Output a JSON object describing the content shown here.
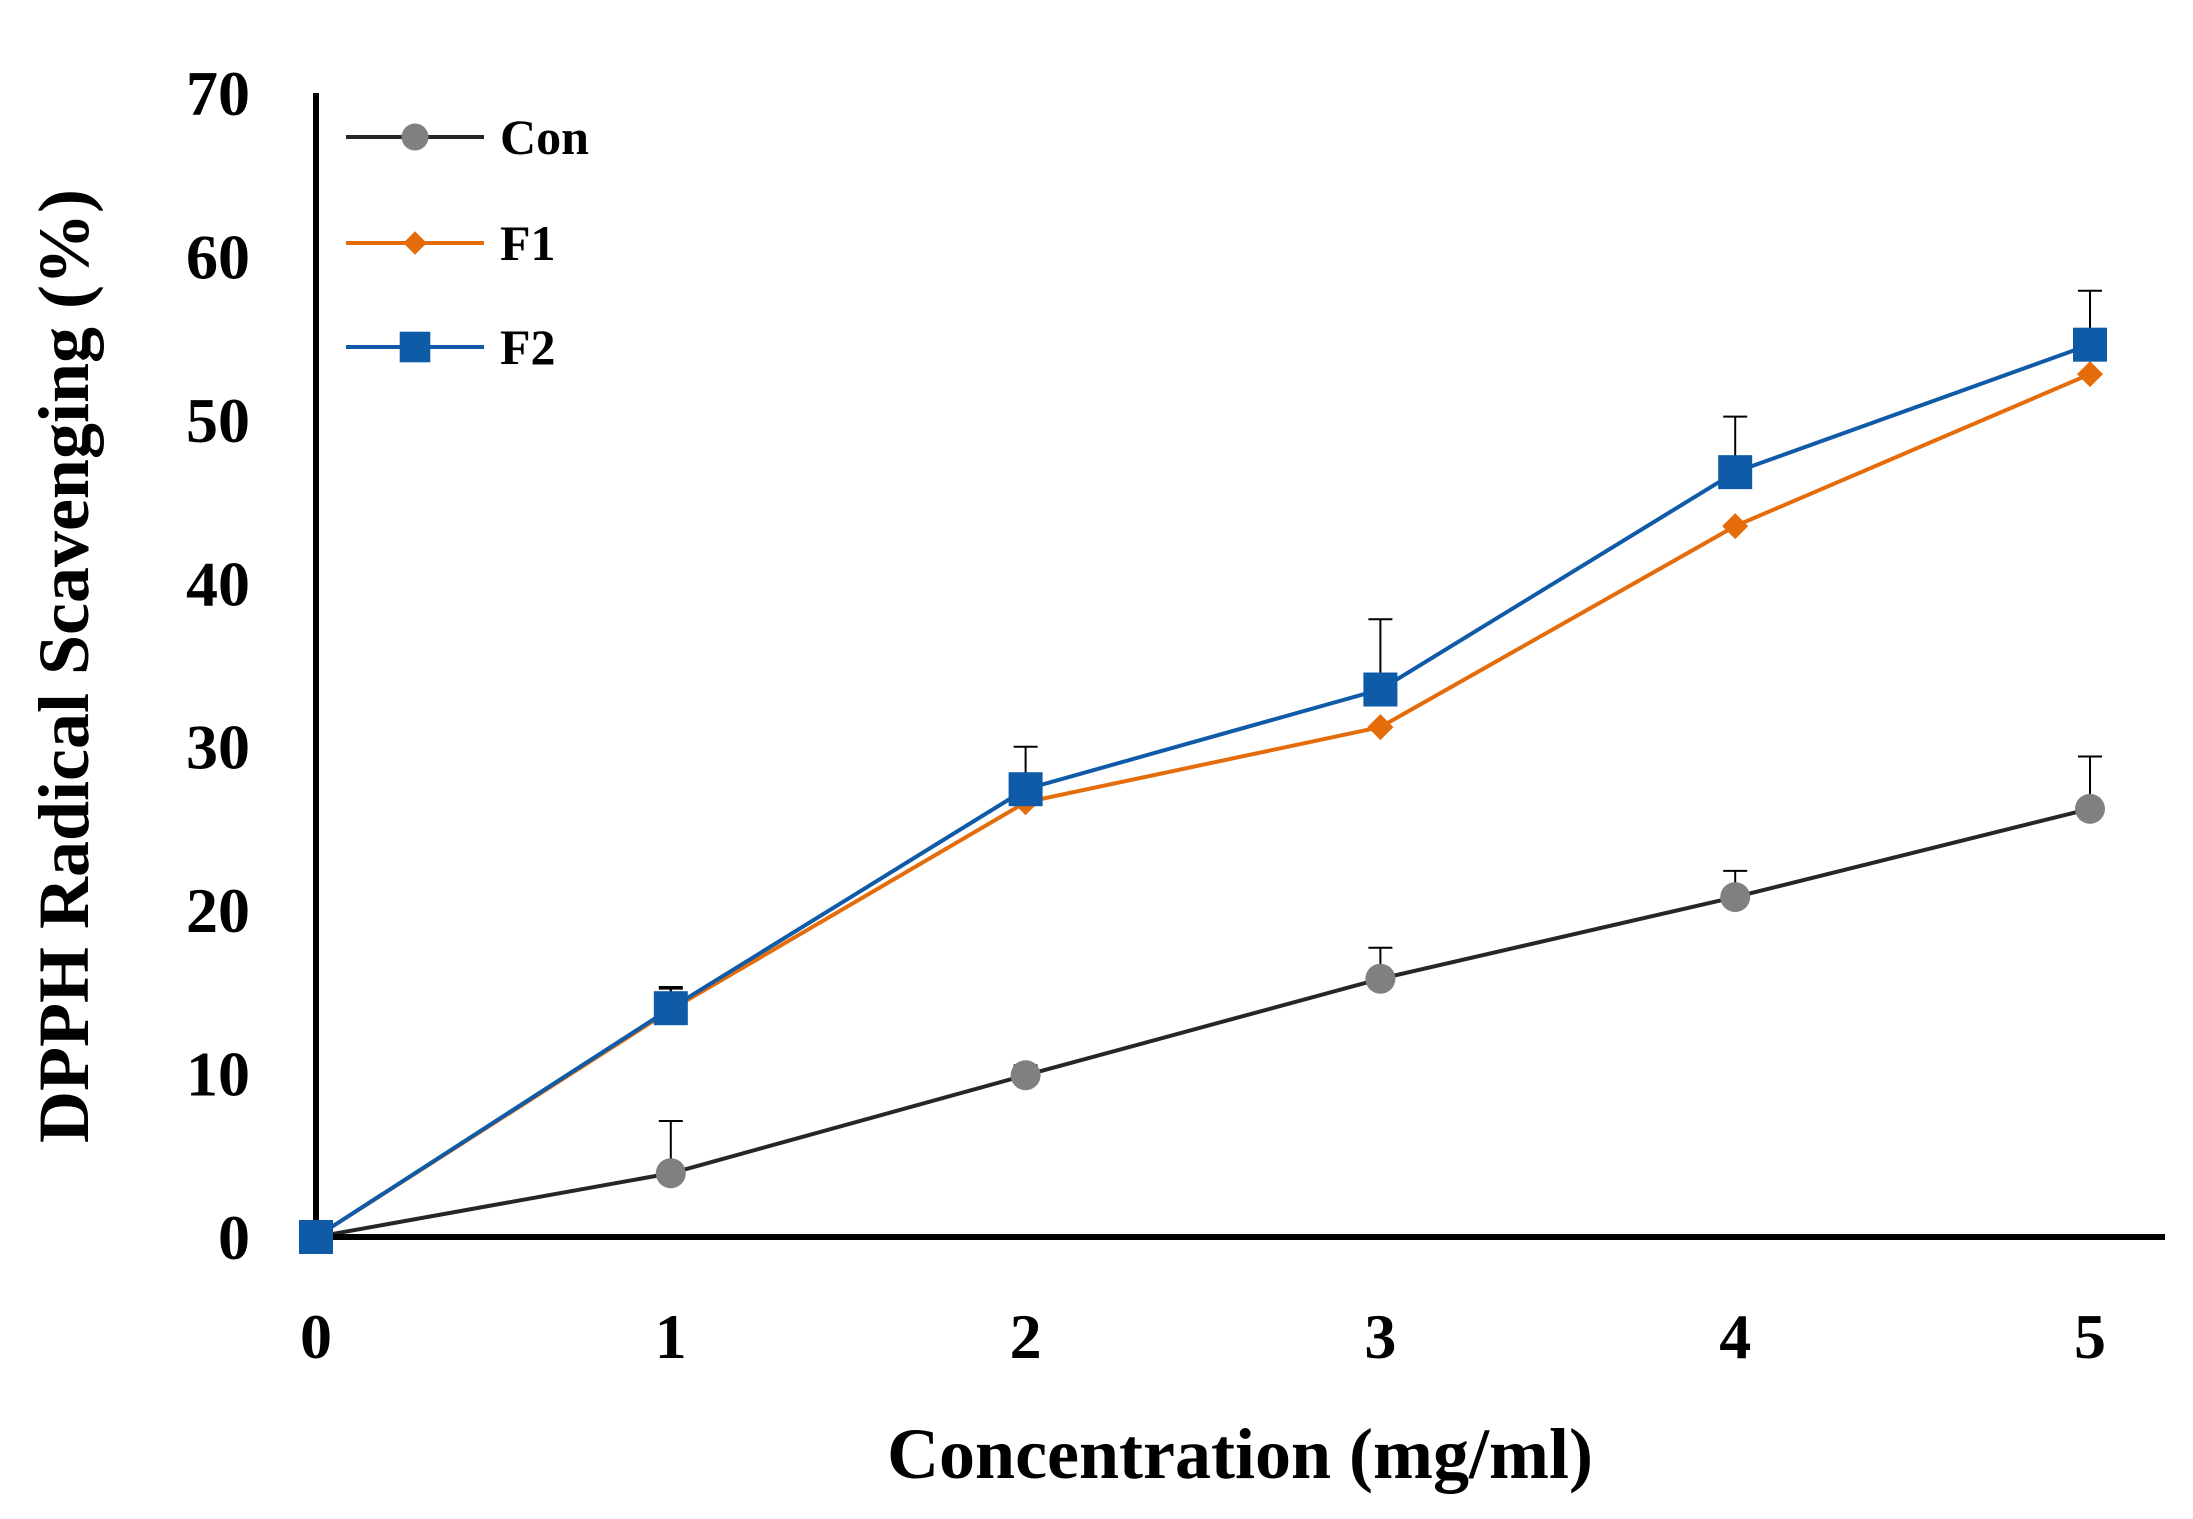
{
  "chart_data": {
    "type": "line",
    "title": "",
    "xlabel": "Concentration (mg/ml)",
    "ylabel": "DPPH Radical Scavenging (%)",
    "x": [
      0,
      1,
      2,
      3,
      4,
      5
    ],
    "xlim": [
      0,
      5
    ],
    "ylim": [
      0,
      70
    ],
    "yticks": [
      0,
      10,
      20,
      30,
      40,
      50,
      60,
      70
    ],
    "xticks": [
      0,
      1,
      2,
      3,
      4,
      5
    ],
    "grid": false,
    "legend_position": "top-left",
    "series": [
      {
        "name": "Con",
        "values": [
          0,
          3.9,
          9.9,
          15.8,
          20.8,
          26.2
        ],
        "error": [
          0,
          3.2,
          0.6,
          1.9,
          1.6,
          3.2
        ],
        "color": "#808080",
        "line_color": "#262626",
        "marker": "circle"
      },
      {
        "name": "F1",
        "values": [
          0,
          13.9,
          26.6,
          31.2,
          43.5,
          52.8
        ],
        "error": [
          0,
          1.3,
          0,
          0,
          0,
          0
        ],
        "color": "#E46C0A",
        "line_color": "#E46C0A",
        "marker": "diamond"
      },
      {
        "name": "F2",
        "values": [
          0,
          14.0,
          27.4,
          33.5,
          46.8,
          54.6
        ],
        "error": [
          0,
          1.3,
          2.6,
          4.3,
          3.4,
          3.3
        ],
        "color": "#0F5BA7",
        "line_color": "#0F5BA7",
        "marker": "square"
      }
    ]
  }
}
